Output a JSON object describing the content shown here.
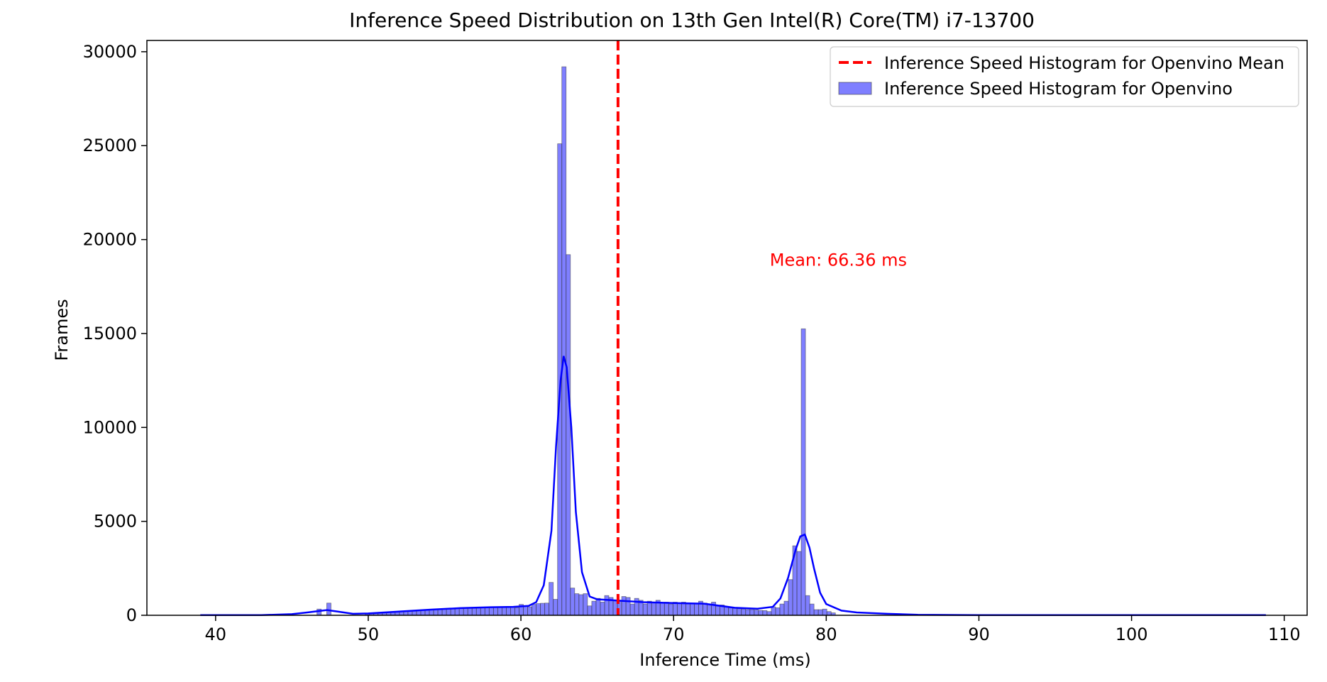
{
  "chart_data": {
    "type": "histogram",
    "title": "Inference Speed Distribution on 13th Gen Intel(R) Core(TM) i7-13700",
    "xlabel": "Inference Time (ms)",
    "ylabel": "Frames",
    "xlim": [
      35.5,
      111.5
    ],
    "ylim": [
      0,
      30600
    ],
    "x_ticks": [
      40,
      50,
      60,
      70,
      80,
      90,
      100,
      110
    ],
    "y_ticks": [
      0,
      5000,
      10000,
      15000,
      20000,
      25000,
      30000
    ],
    "grid": false,
    "legend_position": "top-right",
    "legend": [
      {
        "label": "Inference Speed Histogram for Openvino Mean",
        "kind": "dashed-line",
        "color": "#ff0000"
      },
      {
        "label": "Inference Speed Histogram for Openvino",
        "kind": "patch",
        "color": "#0000ff"
      }
    ],
    "mean": {
      "value": 66.36,
      "label": "Mean: 66.36 ms",
      "label_x": 76.3,
      "label_y": 18600,
      "color": "#ff0000"
    },
    "histogram": {
      "bin_width": 0.28,
      "bar_color": "#0000ff",
      "bar_opacity": 0.5,
      "bins": [
        [
          46.64,
          330
        ],
        [
          47.28,
          650
        ],
        [
          49.8,
          80
        ],
        [
          50.08,
          100
        ],
        [
          50.36,
          110
        ],
        [
          50.64,
          120
        ],
        [
          50.92,
          140
        ],
        [
          51.2,
          160
        ],
        [
          51.48,
          170
        ],
        [
          51.76,
          190
        ],
        [
          52.04,
          210
        ],
        [
          52.32,
          230
        ],
        [
          52.6,
          240
        ],
        [
          52.88,
          260
        ],
        [
          53.16,
          270
        ],
        [
          53.44,
          290
        ],
        [
          53.72,
          300
        ],
        [
          54.0,
          310
        ],
        [
          54.28,
          320
        ],
        [
          54.56,
          330
        ],
        [
          54.84,
          340
        ],
        [
          55.12,
          350
        ],
        [
          55.4,
          360
        ],
        [
          55.68,
          360
        ],
        [
          55.96,
          370
        ],
        [
          56.24,
          380
        ],
        [
          56.52,
          390
        ],
        [
          56.8,
          400
        ],
        [
          57.08,
          410
        ],
        [
          57.36,
          420
        ],
        [
          57.64,
          430
        ],
        [
          57.92,
          420
        ],
        [
          58.2,
          430
        ],
        [
          58.48,
          440
        ],
        [
          58.76,
          430
        ],
        [
          59.04,
          440
        ],
        [
          59.32,
          450
        ],
        [
          59.6,
          400
        ],
        [
          59.88,
          580
        ],
        [
          60.16,
          520
        ],
        [
          60.44,
          450
        ],
        [
          60.72,
          580
        ],
        [
          61.0,
          620
        ],
        [
          61.28,
          640
        ],
        [
          61.56,
          650
        ],
        [
          61.84,
          1750
        ],
        [
          62.12,
          850
        ],
        [
          62.4,
          25100
        ],
        [
          62.68,
          29200
        ],
        [
          62.96,
          19200
        ],
        [
          63.24,
          1450
        ],
        [
          63.52,
          1150
        ],
        [
          63.8,
          1100
        ],
        [
          64.08,
          1150
        ],
        [
          64.36,
          500
        ],
        [
          64.64,
          750
        ],
        [
          64.92,
          900
        ],
        [
          65.2,
          700
        ],
        [
          65.48,
          1050
        ],
        [
          65.76,
          950
        ],
        [
          66.04,
          800
        ],
        [
          66.32,
          750
        ],
        [
          66.6,
          1000
        ],
        [
          66.88,
          950
        ],
        [
          67.16,
          600
        ],
        [
          67.44,
          900
        ],
        [
          67.72,
          800
        ],
        [
          68.0,
          600
        ],
        [
          68.28,
          750
        ],
        [
          68.56,
          700
        ],
        [
          68.84,
          800
        ],
        [
          69.12,
          650
        ],
        [
          69.4,
          700
        ],
        [
          69.68,
          600
        ],
        [
          69.96,
          700
        ],
        [
          70.24,
          650
        ],
        [
          70.52,
          700
        ],
        [
          70.8,
          600
        ],
        [
          71.08,
          650
        ],
        [
          71.36,
          600
        ],
        [
          71.64,
          750
        ],
        [
          71.92,
          650
        ],
        [
          72.2,
          600
        ],
        [
          72.48,
          700
        ],
        [
          72.76,
          500
        ],
        [
          73.04,
          550
        ],
        [
          73.32,
          450
        ],
        [
          73.6,
          400
        ],
        [
          73.88,
          380
        ],
        [
          74.16,
          350
        ],
        [
          74.44,
          330
        ],
        [
          74.72,
          300
        ],
        [
          75.0,
          300
        ],
        [
          75.28,
          280
        ],
        [
          75.56,
          260
        ],
        [
          75.84,
          250
        ],
        [
          76.12,
          200
        ],
        [
          76.4,
          450
        ],
        [
          76.68,
          400
        ],
        [
          76.96,
          600
        ],
        [
          77.24,
          750
        ],
        [
          77.52,
          1900
        ],
        [
          77.8,
          3700
        ],
        [
          78.08,
          3400
        ],
        [
          78.36,
          15250
        ],
        [
          78.64,
          1050
        ],
        [
          78.92,
          600
        ],
        [
          79.2,
          300
        ],
        [
          79.48,
          300
        ],
        [
          79.76,
          330
        ],
        [
          80.04,
          200
        ],
        [
          80.32,
          130
        ]
      ]
    },
    "kde": {
      "color": "#0000ff",
      "points": [
        [
          39.0,
          10
        ],
        [
          43.0,
          10
        ],
        [
          45.0,
          60
        ],
        [
          46.0,
          150
        ],
        [
          47.0,
          250
        ],
        [
          47.3,
          280
        ],
        [
          48.0,
          200
        ],
        [
          49.0,
          80
        ],
        [
          50.0,
          100
        ],
        [
          52.0,
          200
        ],
        [
          54.0,
          300
        ],
        [
          56.0,
          380
        ],
        [
          58.0,
          430
        ],
        [
          59.5,
          450
        ],
        [
          60.5,
          500
        ],
        [
          61.0,
          700
        ],
        [
          61.5,
          1600
        ],
        [
          62.0,
          4500
        ],
        [
          62.3,
          9000
        ],
        [
          62.6,
          12500
        ],
        [
          62.8,
          13800
        ],
        [
          63.0,
          13200
        ],
        [
          63.3,
          10000
        ],
        [
          63.6,
          5500
        ],
        [
          64.0,
          2300
        ],
        [
          64.5,
          1000
        ],
        [
          65.0,
          850
        ],
        [
          66.0,
          800
        ],
        [
          68.0,
          700
        ],
        [
          70.0,
          650
        ],
        [
          72.0,
          620
        ],
        [
          74.0,
          400
        ],
        [
          75.5,
          350
        ],
        [
          76.5,
          450
        ],
        [
          77.0,
          900
        ],
        [
          77.5,
          2000
        ],
        [
          78.0,
          3500
        ],
        [
          78.3,
          4200
        ],
        [
          78.6,
          4300
        ],
        [
          78.9,
          3600
        ],
        [
          79.2,
          2500
        ],
        [
          79.6,
          1200
        ],
        [
          80.0,
          600
        ],
        [
          81.0,
          250
        ],
        [
          82.0,
          150
        ],
        [
          84.0,
          80
        ],
        [
          86.0,
          30
        ],
        [
          90.0,
          10
        ],
        [
          108.8,
          10
        ]
      ]
    }
  }
}
